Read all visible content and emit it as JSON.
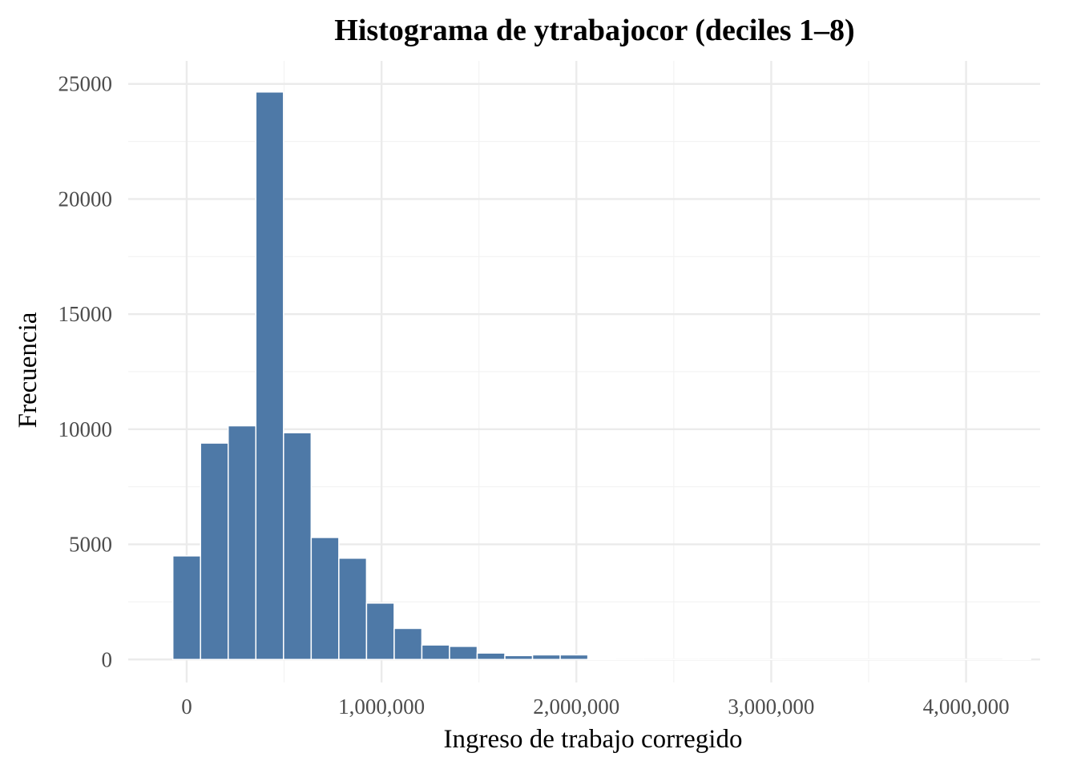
{
  "chart_data": {
    "type": "bar",
    "title": "Histograma de ytrabajocor (deciles 1–8)",
    "xlabel": "Ingreso de trabajo corregido",
    "ylabel": "Frecuencia",
    "bar_color": "#4e79a7",
    "grid": true,
    "bin_width": 142000,
    "xlim": [
      -300000,
      4380000
    ],
    "ylim": [
      -1000,
      26000
    ],
    "x_ticks": [
      0,
      1000000,
      2000000,
      3000000,
      4000000
    ],
    "x_tick_labels": [
      "0",
      "1,000,000",
      "2,000,000",
      "3,000,000",
      "4,000,000"
    ],
    "y_ticks": [
      0,
      5000,
      10000,
      15000,
      20000,
      25000
    ],
    "y_tick_labels": [
      "0",
      "5000",
      "10000",
      "15000",
      "20000",
      "25000"
    ],
    "bins": [
      {
        "x": 0,
        "count": 4500
      },
      {
        "x": 142000,
        "count": 9400
      },
      {
        "x": 284000,
        "count": 10150
      },
      {
        "x": 426000,
        "count": 24650
      },
      {
        "x": 568000,
        "count": 9850
      },
      {
        "x": 710000,
        "count": 5300
      },
      {
        "x": 852000,
        "count": 4400
      },
      {
        "x": 994000,
        "count": 2450
      },
      {
        "x": 1136000,
        "count": 1350
      },
      {
        "x": 1278000,
        "count": 630
      },
      {
        "x": 1420000,
        "count": 570
      },
      {
        "x": 1562000,
        "count": 280
      },
      {
        "x": 1704000,
        "count": 170
      },
      {
        "x": 1846000,
        "count": 200
      },
      {
        "x": 1988000,
        "count": 200
      },
      {
        "x": 2130000,
        "count": 18
      },
      {
        "x": 2272000,
        "count": 12
      },
      {
        "x": 2414000,
        "count": 10
      },
      {
        "x": 2556000,
        "count": 8
      },
      {
        "x": 2698000,
        "count": 6
      },
      {
        "x": 2840000,
        "count": 5
      },
      {
        "x": 2982000,
        "count": 5
      },
      {
        "x": 3124000,
        "count": 4
      },
      {
        "x": 3266000,
        "count": 3
      },
      {
        "x": 3408000,
        "count": 3
      },
      {
        "x": 3550000,
        "count": 2
      },
      {
        "x": 3692000,
        "count": 2
      },
      {
        "x": 3834000,
        "count": 2
      },
      {
        "x": 3976000,
        "count": 2
      },
      {
        "x": 4118000,
        "count": 3
      },
      {
        "x": 4260000,
        "count": 20
      }
    ]
  }
}
